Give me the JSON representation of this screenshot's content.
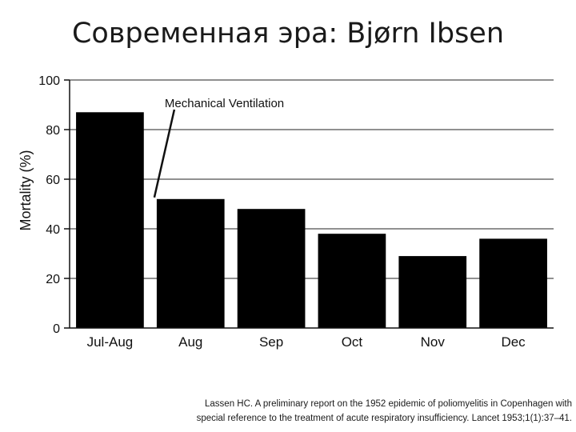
{
  "slide": {
    "title": "Современная эра: Bjørn Ibsen",
    "citation_line1": "Lassen HC. A preliminary report on the 1952 epidemic of poliomyelitis in Copenhagen with",
    "citation_line2": "special reference to the treatment of acute respiratory insufficiency. Lancet 1953;1(1):37–41."
  },
  "chart_data": {
    "type": "bar",
    "title": "",
    "xlabel": "",
    "ylabel": "Mortality (%)",
    "categories": [
      "Jul-Aug",
      "Aug",
      "Sep",
      "Oct",
      "Nov",
      "Dec"
    ],
    "values": [
      87,
      52,
      48,
      38,
      29,
      36
    ],
    "ylim": [
      0,
      100
    ],
    "yticks": [
      0,
      20,
      40,
      60,
      80,
      100
    ],
    "grid": true,
    "bar_color": "#000000",
    "annotation": {
      "text": "Mechanical Ventilation",
      "points_to_category": "Aug"
    }
  }
}
